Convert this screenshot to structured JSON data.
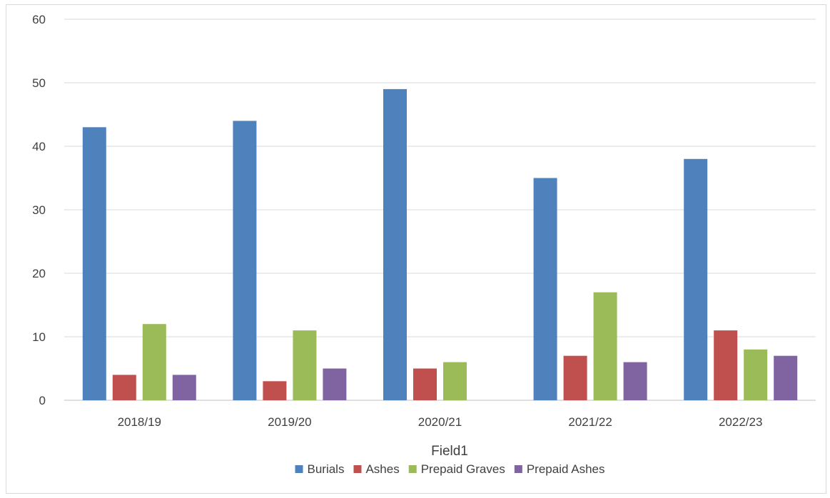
{
  "chart_data": {
    "type": "bar",
    "title": "",
    "xlabel": "Field1",
    "ylabel": "",
    "ylim": [
      0,
      60
    ],
    "yticks": [
      0,
      10,
      20,
      30,
      40,
      50,
      60
    ],
    "grid": true,
    "legend_position": "bottom",
    "categories": [
      "2018/19",
      "2019/20",
      "2020/21",
      "2021/22",
      "2022/23"
    ],
    "series": [
      {
        "name": "Burials",
        "color": "#4f81bd",
        "values": [
          43,
          44,
          49,
          35,
          38
        ]
      },
      {
        "name": "Ashes",
        "color": "#c0504d",
        "values": [
          4,
          3,
          5,
          7,
          11
        ]
      },
      {
        "name": "Prepaid Graves",
        "color": "#9bbb59",
        "values": [
          12,
          11,
          6,
          17,
          8
        ]
      },
      {
        "name": "Prepaid Ashes",
        "color": "#8064a2",
        "values": [
          4,
          5,
          0,
          6,
          7
        ]
      }
    ]
  }
}
